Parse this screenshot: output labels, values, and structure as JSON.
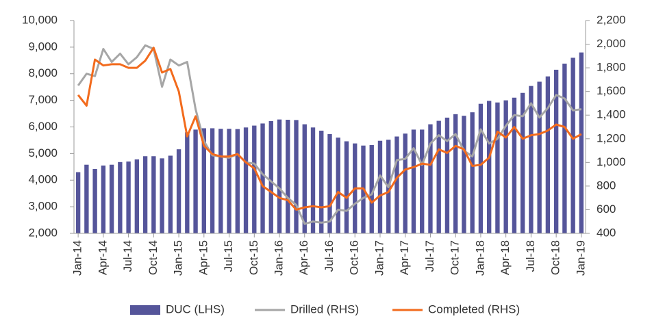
{
  "chart_data": {
    "type": "bar-line",
    "categories": [
      "Jan-14",
      null,
      null,
      "Apr-14",
      null,
      null,
      "Jul-14",
      null,
      null,
      "Oct-14",
      null,
      null,
      "Jan-15",
      null,
      null,
      "Apr-15",
      null,
      null,
      "Jul-15",
      null,
      null,
      "Oct-15",
      null,
      null,
      "Jan-16",
      null,
      null,
      "Apr-16",
      null,
      null,
      "Jul-16",
      null,
      null,
      "Oct-16",
      null,
      null,
      "Jan-17",
      null,
      null,
      "Apr-17",
      null,
      null,
      "Jul-17",
      null,
      null,
      "Oct-17",
      null,
      null,
      "Jan-18",
      null,
      null,
      "Apr-18",
      null,
      null,
      "Jul-18",
      null,
      null,
      "Oct-18",
      null,
      null,
      "Jan-19"
    ],
    "series": [
      {
        "name": "DUC (LHS)",
        "color": "#55559a",
        "kind": "bar",
        "values": [
          4300,
          4580,
          4420,
          4550,
          4580,
          4680,
          4700,
          4780,
          4900,
          4900,
          4820,
          4920,
          5160,
          5800,
          5900,
          5950,
          5950,
          5930,
          5930,
          5920,
          5980,
          6050,
          6130,
          6220,
          6280,
          6270,
          6260,
          6100,
          5980,
          5860,
          5730,
          5600,
          5460,
          5380,
          5300,
          5320,
          5480,
          5520,
          5640,
          5750,
          5900,
          5900,
          6100,
          6230,
          6350,
          6480,
          6420,
          6550,
          6870,
          6980,
          6920,
          7000,
          7100,
          7280,
          7540,
          7700,
          7900,
          8150,
          8380,
          8600,
          8800
        ]
      },
      {
        "name": "Drilled (RHS)",
        "color": "#a6a6a6",
        "kind": "line",
        "axis": "y2",
        "values": [
          1650,
          1750,
          1730,
          1960,
          1850,
          1920,
          1830,
          1890,
          1990,
          1960,
          1640,
          1870,
          1820,
          1850,
          1450,
          1180,
          1060,
          1050,
          1040,
          1070,
          1000,
          990,
          900,
          840,
          780,
          700,
          640,
          480,
          500,
          490,
          500,
          600,
          590,
          650,
          700,
          730,
          890,
          790,
          1020,
          1030,
          1120,
          980,
          1160,
          1230,
          1180,
          1240,
          1100,
          1050,
          1280,
          1160,
          1200,
          1310,
          1400,
          1390,
          1500,
          1380,
          1460,
          1570,
          1540,
          1440,
          1450
        ]
      },
      {
        "name": "Completed (RHS)",
        "color": "#f26b1d",
        "kind": "line",
        "axis": "y2",
        "values": [
          1570,
          1480,
          1870,
          1820,
          1830,
          1830,
          1800,
          1800,
          1860,
          1970,
          1760,
          1790,
          1600,
          1220,
          1390,
          1140,
          1070,
          1050,
          1050,
          1070,
          1000,
          950,
          800,
          750,
          700,
          680,
          600,
          620,
          630,
          620,
          630,
          750,
          700,
          780,
          780,
          660,
          720,
          750,
          870,
          940,
          960,
          990,
          980,
          1110,
          1080,
          1140,
          1110,
          970,
          980,
          1040,
          1260,
          1210,
          1300,
          1200,
          1230,
          1240,
          1270,
          1320,
          1300,
          1200,
          1240
        ]
      }
    ],
    "ylim": [
      2000,
      10000
    ],
    "yticks": [
      {
        "value": 2000,
        "label": "2,000"
      },
      {
        "value": 3000,
        "label": "3,000"
      },
      {
        "value": 4000,
        "label": "4,000"
      },
      {
        "value": 5000,
        "label": "5,000"
      },
      {
        "value": 6000,
        "label": "6,000"
      },
      {
        "value": 7000,
        "label": "7,000"
      },
      {
        "value": 8000,
        "label": "8,000"
      },
      {
        "value": 9000,
        "label": "9,000"
      },
      {
        "value": 10000,
        "label": "10,000"
      }
    ],
    "y2lim": [
      400,
      2200
    ],
    "y2ticks": [
      400,
      600,
      800,
      {
        "value": 1000,
        "label": "1,000"
      },
      {
        "value": 1200,
        "label": "1,200"
      },
      {
        "value": 1400,
        "label": "1,400"
      },
      {
        "value": 1600,
        "label": "1,600"
      },
      {
        "value": 1800,
        "label": "1,800"
      },
      {
        "value": 2000,
        "label": "2,000"
      },
      {
        "value": 2200,
        "label": "2,200"
      }
    ]
  }
}
